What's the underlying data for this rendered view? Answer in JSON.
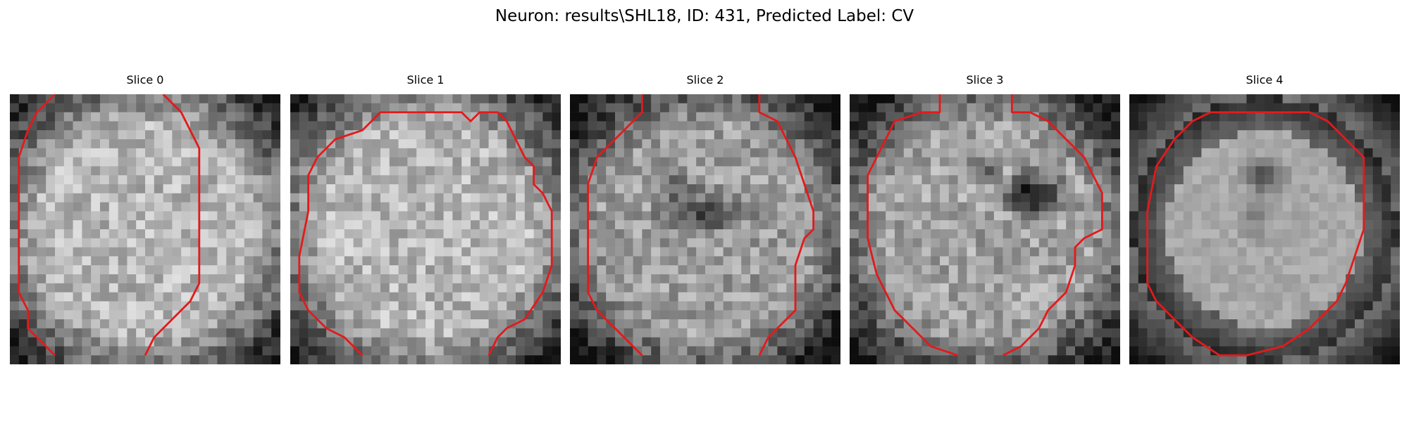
{
  "figure": {
    "title": "Neuron: results\\SHL18, ID: 431, Predicted Label: CV"
  },
  "colors": {
    "contour": "#e31a1c",
    "background": "#ffffff"
  },
  "slices": [
    {
      "title": "Slice 0",
      "center_brightness": 0.72,
      "contour_paths": [
        [
          [
            5,
            0
          ],
          [
            3,
            2
          ],
          [
            2,
            4
          ],
          [
            1,
            7
          ],
          [
            1,
            22
          ],
          [
            2,
            24
          ],
          [
            2,
            26
          ],
          [
            4,
            28
          ],
          [
            5,
            29
          ]
        ],
        [
          [
            17,
            0
          ],
          [
            19,
            2
          ],
          [
            20,
            4
          ],
          [
            21,
            6
          ],
          [
            21,
            21
          ],
          [
            20,
            23
          ],
          [
            18,
            25
          ],
          [
            16,
            27
          ],
          [
            15,
            29
          ]
        ]
      ]
    },
    {
      "title": "Slice 1",
      "center_brightness": 0.72,
      "contour_paths": [
        [
          [
            11,
            2
          ],
          [
            10,
            2
          ],
          [
            8,
            4
          ],
          [
            5,
            5
          ],
          [
            3,
            7
          ],
          [
            2,
            9
          ],
          [
            2,
            13
          ],
          [
            1,
            18
          ],
          [
            1,
            22
          ],
          [
            2,
            24
          ],
          [
            4,
            26
          ],
          [
            6,
            27
          ],
          [
            8,
            29
          ]
        ],
        [
          [
            11,
            2
          ],
          [
            19,
            2
          ],
          [
            20,
            3
          ],
          [
            21,
            2
          ],
          [
            23,
            2
          ],
          [
            24,
            3
          ],
          [
            25,
            5
          ],
          [
            26,
            7
          ],
          [
            27,
            8
          ],
          [
            27,
            10
          ],
          [
            28,
            11
          ],
          [
            29,
            13
          ],
          [
            29,
            19
          ],
          [
            28,
            22
          ],
          [
            26,
            25
          ],
          [
            24,
            26
          ],
          [
            23,
            27
          ],
          [
            22,
            29
          ]
        ]
      ]
    },
    {
      "title": "Slice 2",
      "center_brightness": 0.62,
      "contour_paths": [
        [
          [
            8,
            0
          ],
          [
            8,
            2
          ],
          [
            7,
            3
          ],
          [
            5,
            5
          ],
          [
            3,
            7
          ],
          [
            2,
            10
          ],
          [
            2,
            22
          ],
          [
            3,
            24
          ],
          [
            5,
            26
          ],
          [
            6,
            27
          ],
          [
            8,
            29
          ]
        ],
        [
          [
            21,
            0
          ],
          [
            21,
            2
          ],
          [
            23,
            3
          ],
          [
            24,
            5
          ],
          [
            25,
            7
          ],
          [
            26,
            10
          ],
          [
            27,
            13
          ],
          [
            27,
            15
          ],
          [
            26,
            16
          ],
          [
            25,
            19
          ],
          [
            25,
            24
          ],
          [
            24,
            25
          ],
          [
            23,
            26
          ],
          [
            22,
            27
          ],
          [
            21,
            29
          ]
        ]
      ]
    },
    {
      "title": "Slice 3",
      "center_brightness": 0.64,
      "contour_paths": [
        [
          [
            10,
            0
          ],
          [
            10,
            2
          ],
          [
            8,
            2
          ],
          [
            5,
            3
          ],
          [
            4,
            5
          ],
          [
            3,
            7
          ],
          [
            2,
            9
          ],
          [
            2,
            16
          ],
          [
            3,
            20
          ],
          [
            4,
            22
          ],
          [
            5,
            24
          ],
          [
            7,
            26
          ],
          [
            9,
            28
          ],
          [
            12,
            29
          ]
        ],
        [
          [
            18,
            0
          ],
          [
            18,
            2
          ],
          [
            20,
            2
          ],
          [
            22,
            3
          ],
          [
            24,
            5
          ],
          [
            26,
            7
          ],
          [
            27,
            9
          ],
          [
            28,
            11
          ],
          [
            28,
            15
          ],
          [
            26,
            16
          ],
          [
            25,
            17
          ],
          [
            25,
            19
          ],
          [
            24,
            22
          ],
          [
            22,
            24
          ],
          [
            21,
            26
          ],
          [
            19,
            28
          ],
          [
            17,
            29
          ]
        ]
      ]
    },
    {
      "title": "Slice 4",
      "center_brightness": 0.66,
      "contour_paths": [
        [
          [
            9,
            2
          ],
          [
            20,
            2
          ],
          [
            22,
            3
          ],
          [
            24,
            5
          ],
          [
            26,
            7
          ],
          [
            26,
            15
          ],
          [
            25,
            18
          ],
          [
            24,
            21
          ],
          [
            23,
            23
          ],
          [
            20,
            26
          ],
          [
            17,
            28
          ],
          [
            13,
            29
          ],
          [
            10,
            29
          ],
          [
            7,
            27
          ],
          [
            5,
            25
          ],
          [
            3,
            23
          ],
          [
            2,
            21
          ],
          [
            2,
            13
          ],
          [
            3,
            8
          ],
          [
            5,
            5
          ],
          [
            7,
            3
          ],
          [
            9,
            2
          ]
        ]
      ]
    }
  ]
}
